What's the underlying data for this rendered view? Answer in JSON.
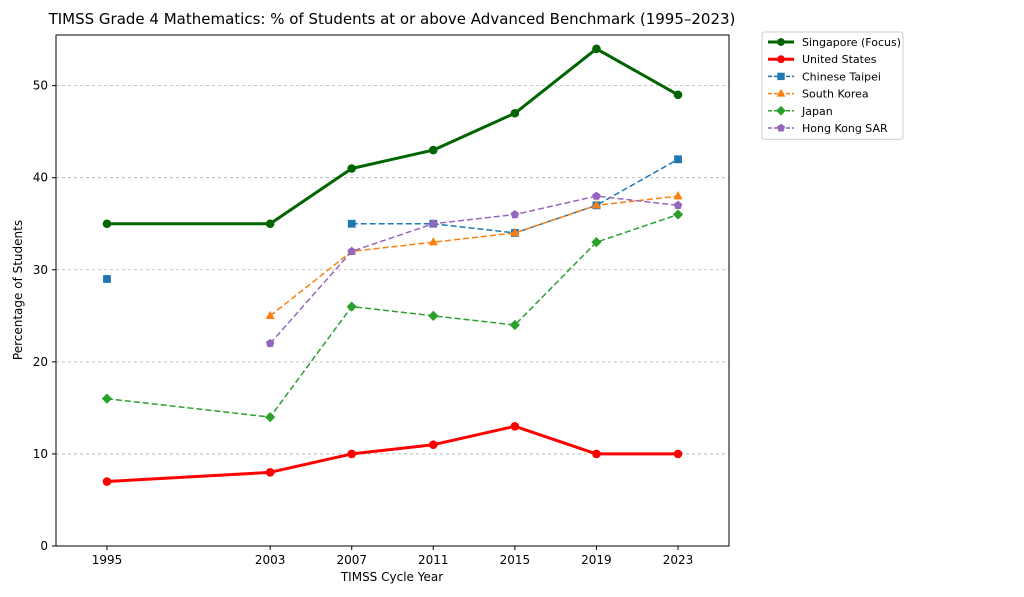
{
  "chart_data": {
    "type": "line",
    "title": "TIMSS Grade 4 Mathematics: % of Students at or above Advanced Benchmark (1995–2023)",
    "xlabel": "TIMSS Cycle Year",
    "ylabel": "Percentage of Students",
    "x": [
      1995,
      2003,
      2007,
      2011,
      2015,
      2019,
      2023
    ],
    "xlim": [
      1992.5,
      2025.5
    ],
    "ylim": [
      0,
      55.5
    ],
    "yticks": [
      0,
      10,
      20,
      30,
      40,
      50
    ],
    "grid": "y-dashed",
    "legend_position": "outside-top-right",
    "series": [
      {
        "name": "Singapore (Focus)",
        "color": "#006400",
        "style": "solid",
        "marker": "circle",
        "width": 3,
        "values": [
          35,
          35,
          41,
          43,
          47,
          54,
          49
        ]
      },
      {
        "name": "United States",
        "color": "#ff0000",
        "style": "solid",
        "marker": "circle",
        "width": 3,
        "values": [
          7,
          8,
          10,
          11,
          13,
          10,
          10
        ]
      },
      {
        "name": "Chinese Taipei",
        "color": "#1f77b4",
        "style": "dashed",
        "marker": "square",
        "width": 1.5,
        "values": [
          29,
          null,
          35,
          35,
          34,
          37,
          42
        ]
      },
      {
        "name": "South Korea",
        "color": "#ff7f0e",
        "style": "dashed",
        "marker": "triangle",
        "width": 1.5,
        "values": [
          null,
          25,
          32,
          33,
          34,
          37,
          38
        ]
      },
      {
        "name": "Japan",
        "color": "#2ca02c",
        "style": "dashed",
        "marker": "diamond",
        "width": 1.5,
        "values": [
          16,
          14,
          26,
          25,
          24,
          33,
          36
        ]
      },
      {
        "name": "Hong Kong SAR",
        "color": "#9467bd",
        "style": "dashed",
        "marker": "pentagon",
        "width": 1.5,
        "values": [
          null,
          22,
          32,
          35,
          36,
          38,
          37
        ]
      }
    ]
  }
}
